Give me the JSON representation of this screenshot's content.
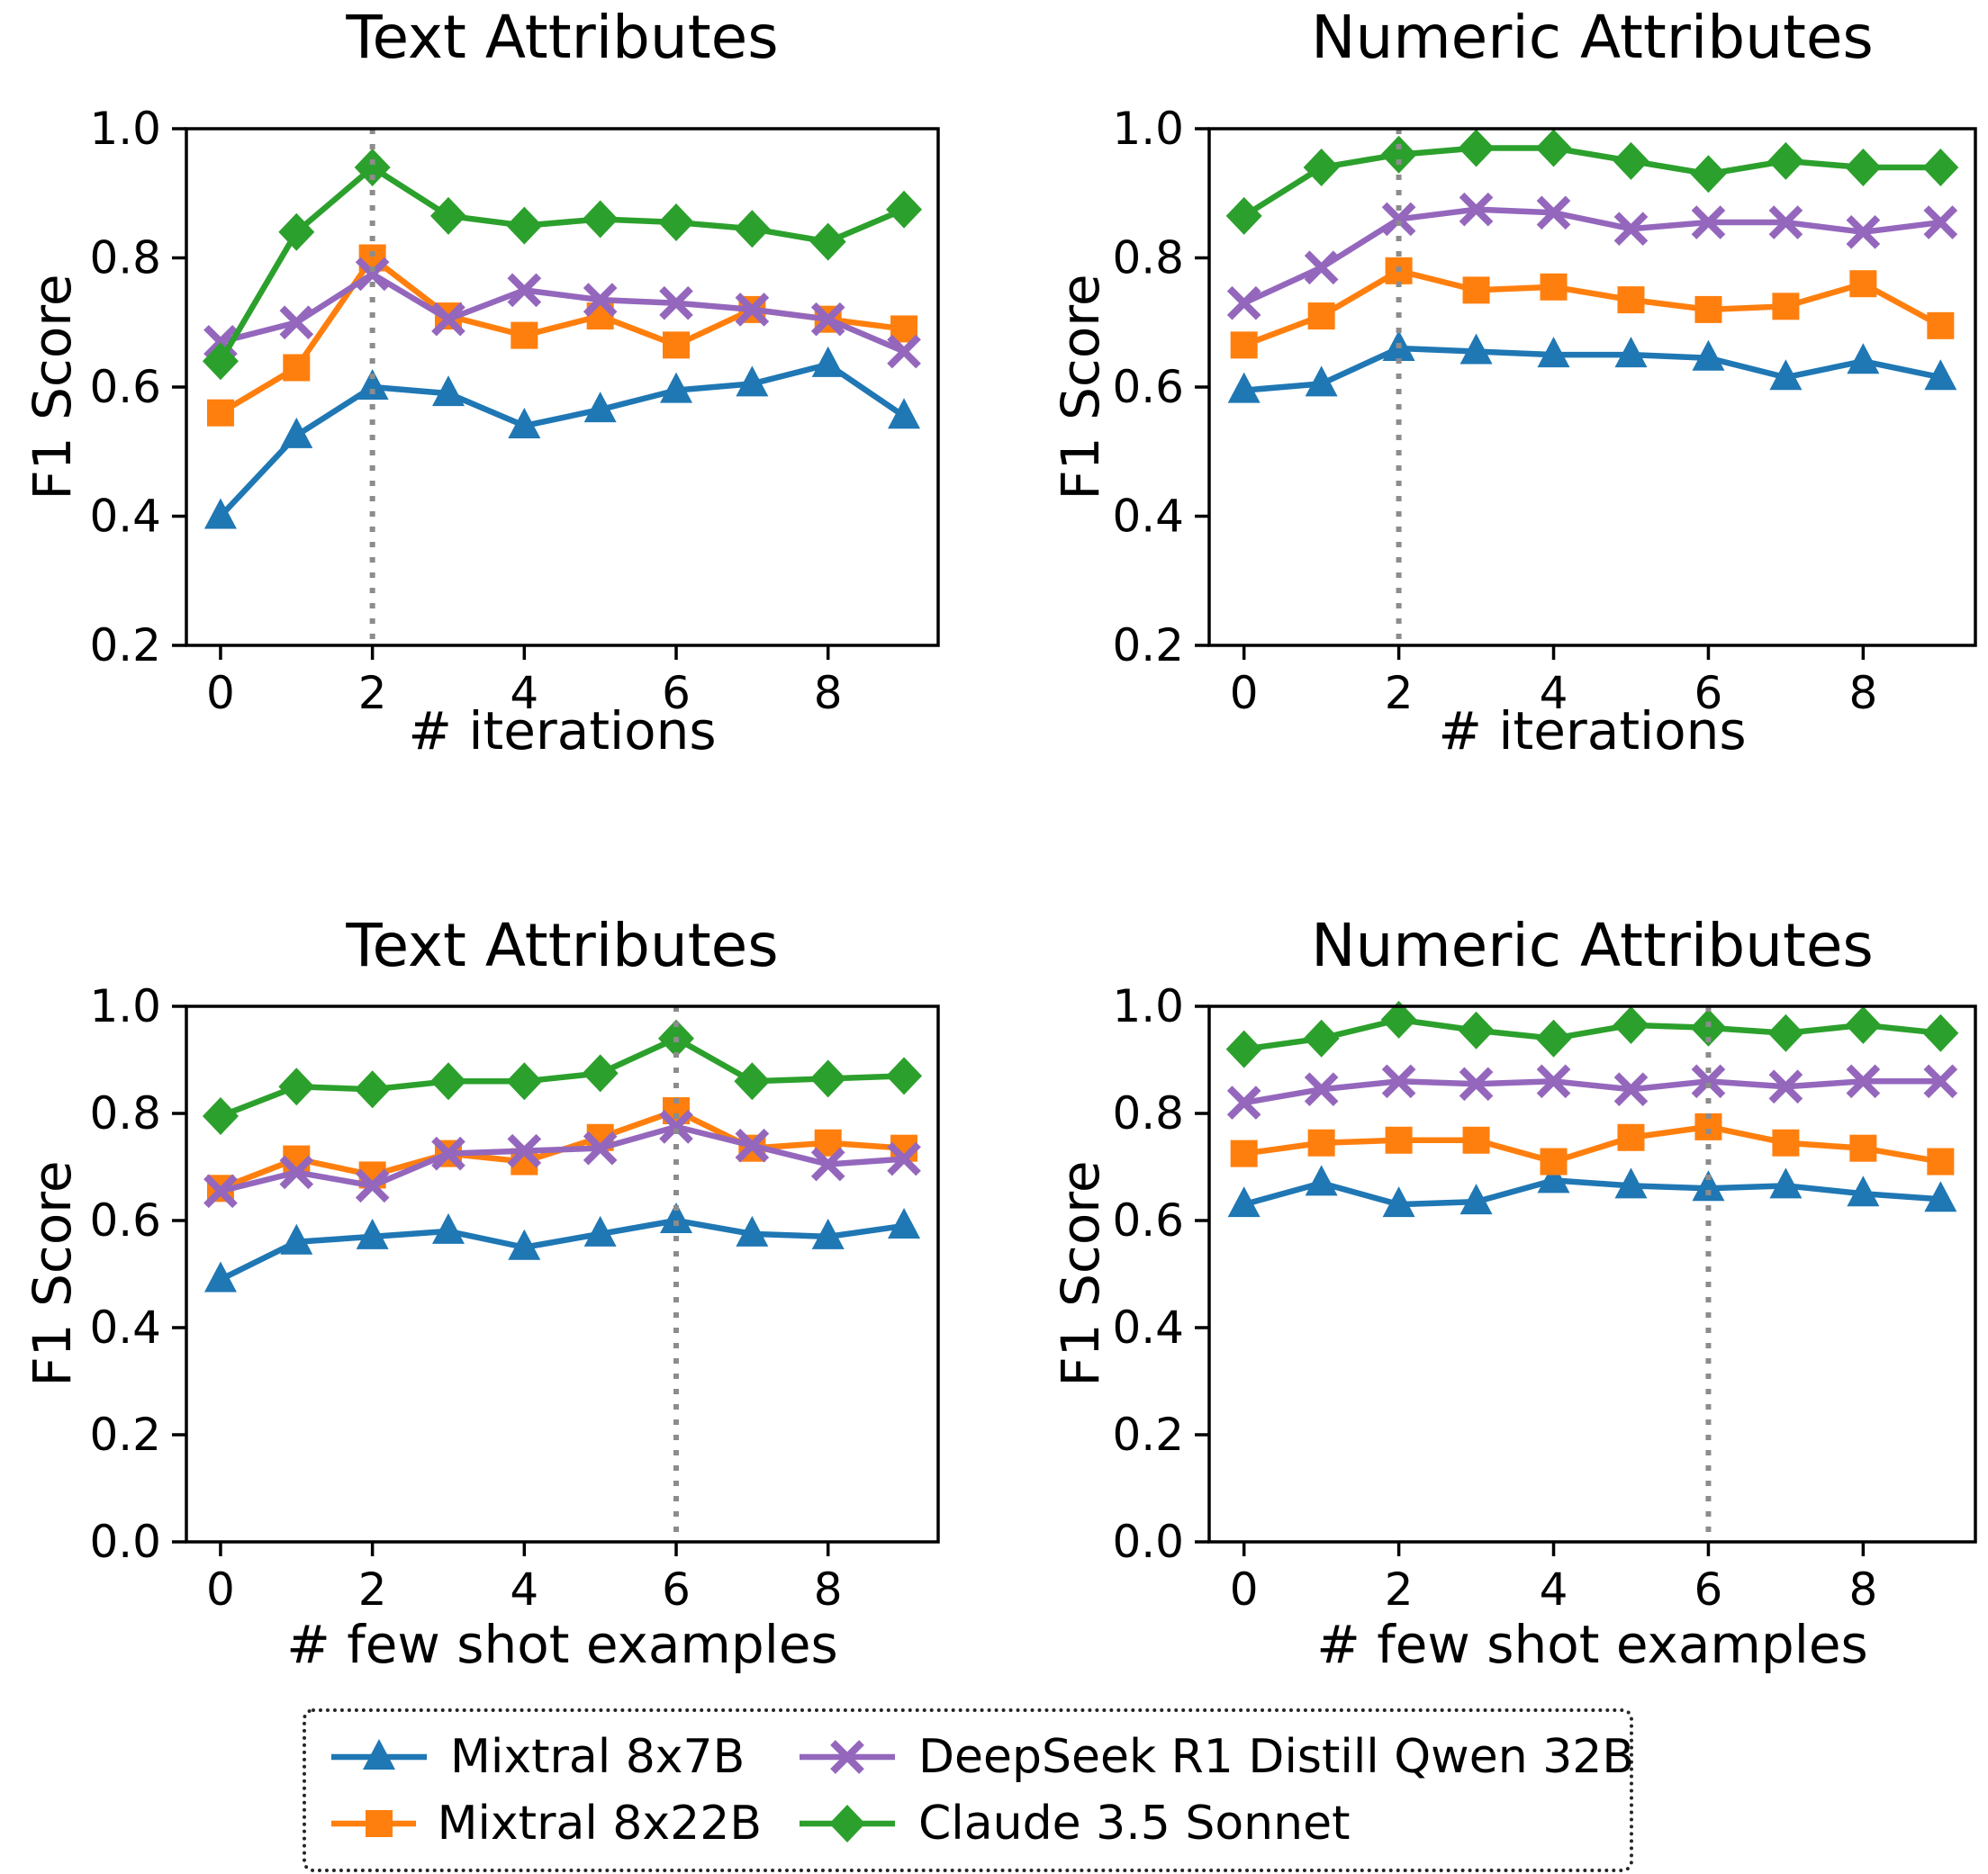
{
  "figure": {
    "background": "#ffffff",
    "frame_color": "#000000",
    "vline_style": "dotted"
  },
  "legend": {
    "items": [
      {
        "label": "Mixtral 8x7B",
        "color": "#1f77b4",
        "marker": "triangle"
      },
      {
        "label": "Mixtral 8x22B",
        "color": "#ff7f0e",
        "marker": "square"
      },
      {
        "label": "DeepSeek R1 Distill Qwen 32B",
        "color": "#9467bd",
        "marker": "x"
      },
      {
        "label": "Claude 3.5 Sonnet",
        "color": "#2ca02c",
        "marker": "diamond"
      }
    ]
  },
  "chart_data": [
    {
      "type": "line",
      "title": "Text Attributes",
      "xlabel": "# iterations",
      "ylabel": "F1 Score",
      "x": [
        0,
        1,
        2,
        3,
        4,
        5,
        6,
        7,
        8,
        9
      ],
      "xticks": [
        0,
        2,
        4,
        6,
        8
      ],
      "xlim": [
        -0.45,
        9.45
      ],
      "ylim": [
        0.2,
        1.0
      ],
      "yticks": [
        0.2,
        0.4,
        0.6,
        0.8,
        1.0
      ],
      "grid": false,
      "legend_position": "bottom-figure",
      "vline_x": 2,
      "vline_color": "#8c8c8c",
      "series": [
        {
          "name": "Mixtral 8x7B",
          "color": "#1f77b4",
          "marker": "triangle",
          "values": [
            0.4,
            0.525,
            0.6,
            0.59,
            0.54,
            0.565,
            0.595,
            0.605,
            0.635,
            0.555
          ]
        },
        {
          "name": "Mixtral 8x22B",
          "color": "#ff7f0e",
          "marker": "square",
          "values": [
            0.56,
            0.63,
            0.8,
            0.71,
            0.68,
            0.71,
            0.665,
            0.72,
            0.705,
            0.69
          ]
        },
        {
          "name": "DeepSeek R1 Distill Qwen 32B",
          "color": "#9467bd",
          "marker": "x",
          "values": [
            0.67,
            0.7,
            0.775,
            0.705,
            0.75,
            0.735,
            0.73,
            0.72,
            0.705,
            0.655
          ]
        },
        {
          "name": "Claude 3.5 Sonnet",
          "color": "#2ca02c",
          "marker": "diamond",
          "values": [
            0.64,
            0.84,
            0.94,
            0.865,
            0.85,
            0.86,
            0.855,
            0.845,
            0.825,
            0.875
          ]
        }
      ]
    },
    {
      "type": "line",
      "title": "Numeric Attributes",
      "xlabel": "# iterations",
      "ylabel": "F1 Score",
      "x": [
        0,
        1,
        2,
        3,
        4,
        5,
        6,
        7,
        8,
        9
      ],
      "xticks": [
        0,
        2,
        4,
        6,
        8
      ],
      "xlim": [
        -0.45,
        9.45
      ],
      "ylim": [
        0.2,
        1.0
      ],
      "yticks": [
        0.2,
        0.4,
        0.6,
        0.8,
        1.0
      ],
      "grid": false,
      "legend_position": "bottom-figure",
      "vline_x": 2,
      "vline_color": "#8c8c8c",
      "series": [
        {
          "name": "Mixtral 8x7B",
          "color": "#1f77b4",
          "marker": "triangle",
          "values": [
            0.595,
            0.605,
            0.66,
            0.655,
            0.65,
            0.65,
            0.645,
            0.615,
            0.64,
            0.615
          ]
        },
        {
          "name": "Mixtral 8x22B",
          "color": "#ff7f0e",
          "marker": "square",
          "values": [
            0.665,
            0.71,
            0.78,
            0.75,
            0.755,
            0.735,
            0.72,
            0.725,
            0.76,
            0.695
          ]
        },
        {
          "name": "DeepSeek R1 Distill Qwen 32B",
          "color": "#9467bd",
          "marker": "x",
          "values": [
            0.73,
            0.785,
            0.86,
            0.875,
            0.87,
            0.845,
            0.855,
            0.855,
            0.84,
            0.855
          ]
        },
        {
          "name": "Claude 3.5 Sonnet",
          "color": "#2ca02c",
          "marker": "diamond",
          "values": [
            0.865,
            0.94,
            0.96,
            0.97,
            0.97,
            0.95,
            0.93,
            0.95,
            0.94,
            0.94
          ]
        }
      ]
    },
    {
      "type": "line",
      "title": "Text Attributes",
      "xlabel": "# few shot examples",
      "ylabel": "F1 Score",
      "x": [
        0,
        1,
        2,
        3,
        4,
        5,
        6,
        7,
        8,
        9
      ],
      "xticks": [
        0,
        2,
        4,
        6,
        8
      ],
      "xlim": [
        -0.45,
        9.45
      ],
      "ylim": [
        0.0,
        1.0
      ],
      "yticks": [
        0.0,
        0.2,
        0.4,
        0.6,
        0.8,
        1.0
      ],
      "grid": false,
      "legend_position": "bottom-figure",
      "vline_x": 6,
      "vline_color": "#8c8c8c",
      "series": [
        {
          "name": "Mixtral 8x7B",
          "color": "#1f77b4",
          "marker": "triangle",
          "values": [
            0.49,
            0.56,
            0.57,
            0.58,
            0.55,
            0.575,
            0.6,
            0.575,
            0.57,
            0.59
          ]
        },
        {
          "name": "Mixtral 8x22B",
          "color": "#ff7f0e",
          "marker": "square",
          "values": [
            0.66,
            0.715,
            0.685,
            0.725,
            0.71,
            0.755,
            0.805,
            0.735,
            0.745,
            0.735
          ]
        },
        {
          "name": "DeepSeek R1 Distill Qwen 32B",
          "color": "#9467bd",
          "marker": "x",
          "values": [
            0.655,
            0.69,
            0.665,
            0.725,
            0.73,
            0.735,
            0.775,
            0.74,
            0.705,
            0.715
          ]
        },
        {
          "name": "Claude 3.5 Sonnet",
          "color": "#2ca02c",
          "marker": "diamond",
          "values": [
            0.795,
            0.85,
            0.845,
            0.86,
            0.86,
            0.875,
            0.94,
            0.86,
            0.865,
            0.87
          ]
        }
      ]
    },
    {
      "type": "line",
      "title": "Numeric Attributes",
      "xlabel": "# few shot examples",
      "ylabel": "F1 Score",
      "x": [
        0,
        1,
        2,
        3,
        4,
        5,
        6,
        7,
        8,
        9
      ],
      "xticks": [
        0,
        2,
        4,
        6,
        8
      ],
      "xlim": [
        -0.45,
        9.45
      ],
      "ylim": [
        0.0,
        1.0
      ],
      "yticks": [
        0.0,
        0.2,
        0.4,
        0.6,
        0.8,
        1.0
      ],
      "grid": false,
      "legend_position": "bottom-figure",
      "vline_x": 6,
      "vline_color": "#8c8c8c",
      "series": [
        {
          "name": "Mixtral 8x7B",
          "color": "#1f77b4",
          "marker": "triangle",
          "values": [
            0.63,
            0.67,
            0.63,
            0.635,
            0.675,
            0.665,
            0.66,
            0.665,
            0.65,
            0.64
          ]
        },
        {
          "name": "Mixtral 8x22B",
          "color": "#ff7f0e",
          "marker": "square",
          "values": [
            0.725,
            0.745,
            0.75,
            0.75,
            0.71,
            0.755,
            0.775,
            0.745,
            0.735,
            0.71
          ]
        },
        {
          "name": "DeepSeek R1 Distill Qwen 32B",
          "color": "#9467bd",
          "marker": "x",
          "values": [
            0.82,
            0.845,
            0.86,
            0.855,
            0.86,
            0.845,
            0.86,
            0.85,
            0.86,
            0.86
          ]
        },
        {
          "name": "Claude 3.5 Sonnet",
          "color": "#2ca02c",
          "marker": "diamond",
          "values": [
            0.92,
            0.94,
            0.975,
            0.955,
            0.94,
            0.965,
            0.96,
            0.95,
            0.965,
            0.95
          ]
        }
      ]
    }
  ]
}
